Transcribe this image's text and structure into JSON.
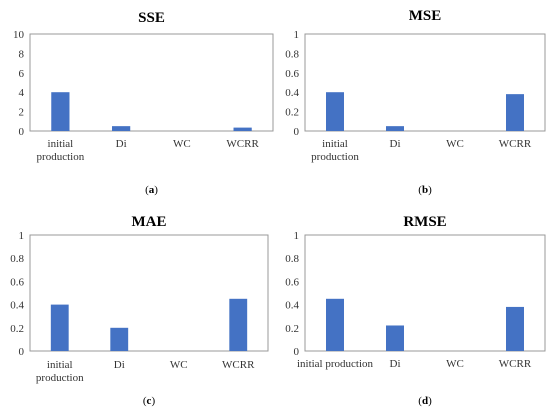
{
  "chart_data": [
    {
      "type": "bar",
      "title": "SSE",
      "panel_label": "a",
      "categories": [
        "initial production",
        "Di",
        "WC",
        "WCRR"
      ],
      "category_lines": [
        [
          "initial",
          "production"
        ],
        [
          "Di"
        ],
        [
          "WC"
        ],
        [
          "WCRR"
        ]
      ],
      "values": [
        4.0,
        0.5,
        0.0,
        0.35
      ],
      "ylim": [
        0,
        10
      ],
      "yticks": [
        "0",
        "2",
        "4",
        "6",
        "8",
        "10"
      ],
      "bar_color": "#4472c4",
      "grid": false,
      "legend": false
    },
    {
      "type": "bar",
      "title": "MSE",
      "panel_label": "b",
      "categories": [
        "initial production",
        "Di",
        "WC",
        "WCRR"
      ],
      "category_lines": [
        [
          "initial",
          "production"
        ],
        [
          "Di"
        ],
        [
          "WC"
        ],
        [
          "WCRR"
        ]
      ],
      "values": [
        0.4,
        0.05,
        0.0,
        0.38
      ],
      "ylim": [
        0,
        1
      ],
      "yticks": [
        "0",
        "0.2",
        "0.4",
        "0.6",
        "0.8",
        "1"
      ],
      "bar_color": "#4472c4",
      "grid": false,
      "legend": false
    },
    {
      "type": "bar",
      "title": "MAE",
      "panel_label": "c",
      "categories": [
        "initial production",
        "Di",
        "WC",
        "WCRR"
      ],
      "category_lines": [
        [
          "initial",
          "production"
        ],
        [
          "Di"
        ],
        [
          "WC"
        ],
        [
          "WCRR"
        ]
      ],
      "values": [
        0.4,
        0.2,
        0.0,
        0.45
      ],
      "ylim": [
        0,
        1
      ],
      "yticks": [
        "0",
        "0.2",
        "0.4",
        "0.6",
        "0.8",
        "1"
      ],
      "bar_color": "#4472c4",
      "grid": false,
      "legend": false
    },
    {
      "type": "bar",
      "title": "RMSE",
      "panel_label": "d",
      "categories": [
        "initial production",
        "Di",
        "WC",
        "WCRR"
      ],
      "category_lines": [
        [
          "initial production"
        ],
        [
          "Di"
        ],
        [
          "WC"
        ],
        [
          "WCRR"
        ]
      ],
      "values": [
        0.45,
        0.22,
        0.0,
        0.38
      ],
      "ylim": [
        0,
        1
      ],
      "yticks": [
        "0",
        "0.2",
        "0.4",
        "0.6",
        "0.8",
        "1"
      ],
      "bar_color": "#4472c4",
      "grid": false,
      "legend": false
    }
  ]
}
